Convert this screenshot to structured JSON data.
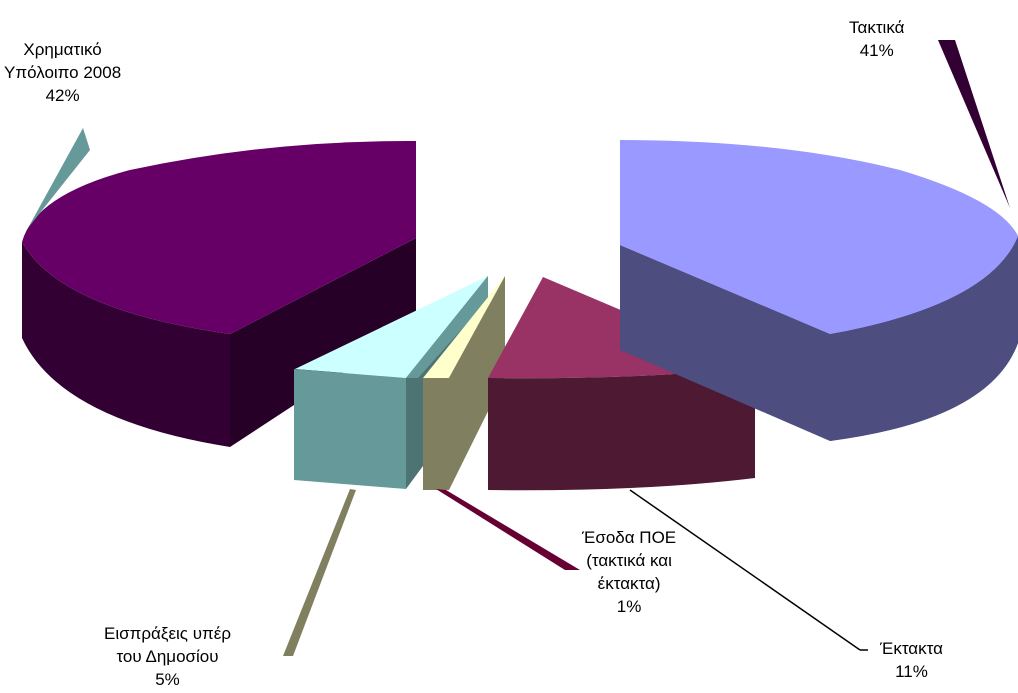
{
  "chart_data": {
    "type": "pie",
    "three_d": true,
    "exploded": true,
    "slices": [
      {
        "label": "Τακτικά",
        "percent_label": "41%",
        "value": 41,
        "color": "#9999ff"
      },
      {
        "label": "Έκτακτα",
        "percent_label": "11%",
        "value": 11,
        "color": "#993366"
      },
      {
        "label": "Έσοδα ΠΟΕ (τακτικά και έκτακτα)",
        "percent_label": "1%",
        "value": 1,
        "color": "#ffffcc"
      },
      {
        "label": "Εισπράξεις υπέρ του Δημοσίου",
        "percent_label": "5%",
        "value": 5,
        "color": "#ccffff"
      },
      {
        "label": "Χρηματικό Υπόλοιπο 2008",
        "percent_label": "42%",
        "value": 42,
        "color": "#660066"
      }
    ],
    "label_lines": {
      "takt": [
        "Τακτικά",
        "41%"
      ],
      "ekt": [
        "Έκτακτα",
        "11%"
      ],
      "poe": [
        "Έσοδα ΠΟΕ",
        "(τακτικά και",
        "έκτακτα)",
        "1%"
      ],
      "eisp": [
        "Εισπράξεις υπέρ",
        "του Δημοσίου",
        "5%"
      ],
      "xrim": [
        "Χρηματικό",
        "Υπόλοιπο 2008",
        "42%"
      ]
    }
  }
}
